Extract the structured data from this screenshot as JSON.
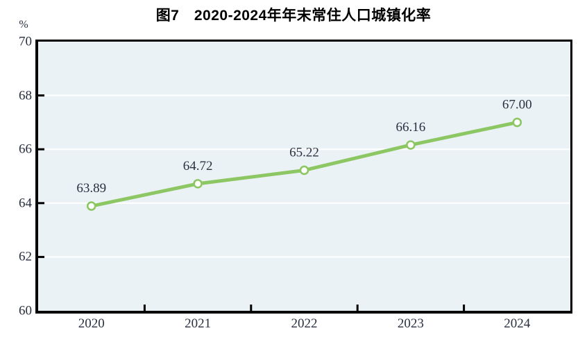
{
  "title": "图7　2020-2024年年末常住人口城镇化率",
  "y_axis": {
    "unit": "%"
  },
  "chart_data": {
    "type": "line",
    "title": "图7　2020-2024年年末常住人口城镇化率",
    "categories": [
      "2020",
      "2021",
      "2022",
      "2023",
      "2024"
    ],
    "series": [
      {
        "name": "年末常住人口城镇化率",
        "values": [
          63.89,
          64.72,
          65.22,
          66.16,
          67.0
        ]
      }
    ],
    "data_labels": [
      "63.89",
      "64.72",
      "65.22",
      "66.16",
      "67.00"
    ],
    "xlabel": "",
    "ylabel": "%",
    "ylim": [
      60,
      70
    ],
    "yticks": [
      60,
      62,
      64,
      66,
      68,
      70
    ],
    "grid": true,
    "legend_position": "none",
    "colors": {
      "line": "#8dc763",
      "marker_fill": "#ffffff",
      "plot_background": "#ebf2f6",
      "gridline": "#ffffff",
      "axis": "#000000",
      "text": "#2a3040",
      "title": "#000000"
    }
  }
}
